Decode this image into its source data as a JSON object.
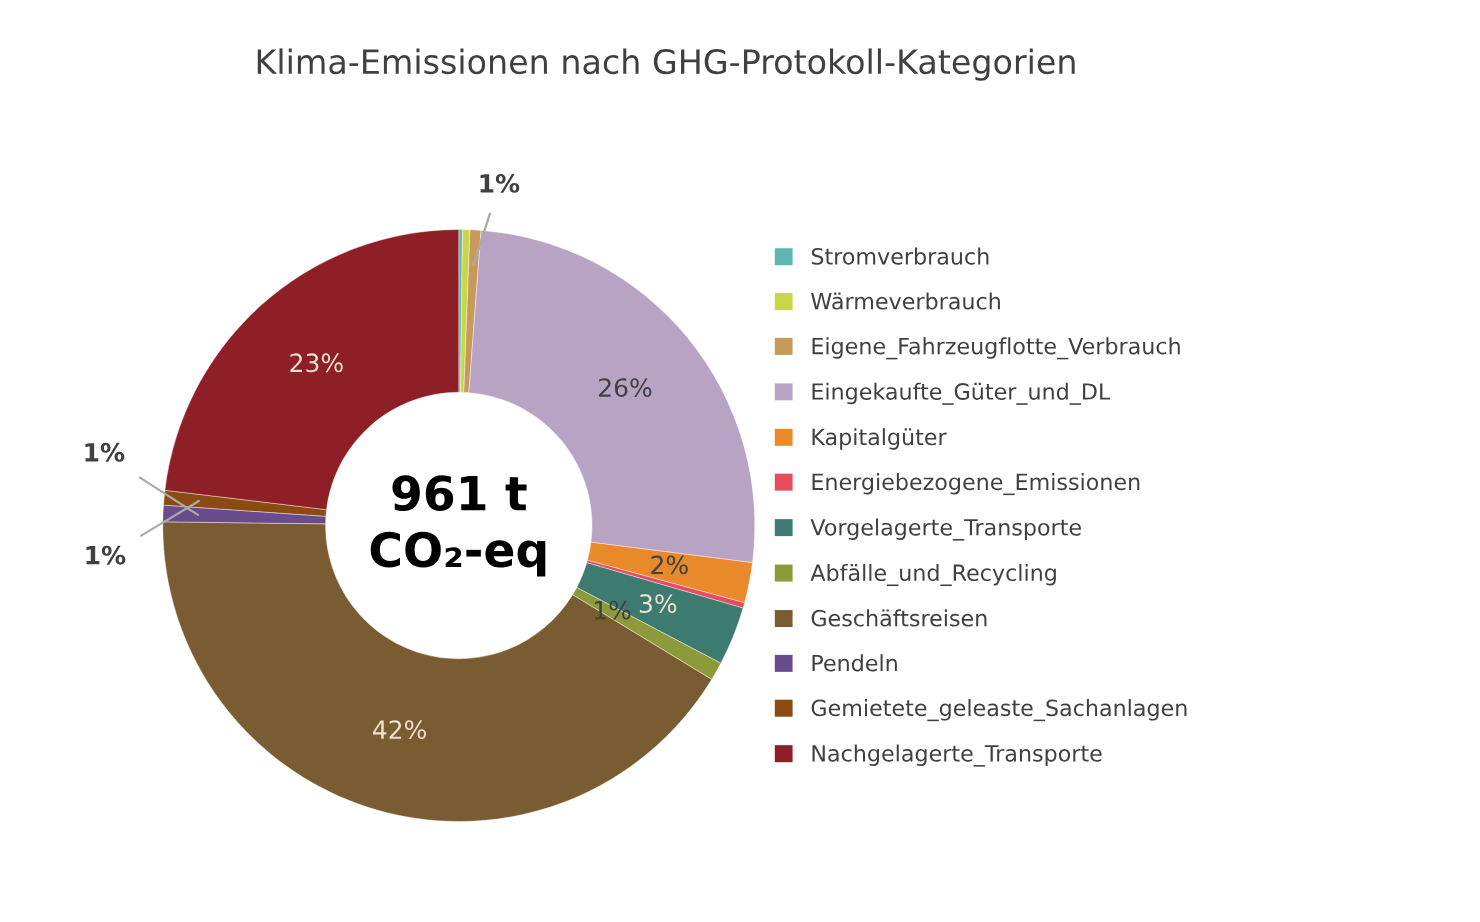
{
  "chart_data": {
    "type": "donut",
    "title": "Klima-Emissionen nach GHG-Protokoll-Kategorien",
    "categories": [
      "Stromverbrauch",
      "Wärmeverbrauch",
      "Eigene_Fahrzeugflotte_Verbrauch",
      "Eingekaufte_Güter_und_DL",
      "Kapitalgüter",
      "Energiebezogene_Emissionen",
      "Vorgelagerte_Transporte",
      "Abfälle_und_Recycling",
      "Geschäftsreisen",
      "Pendeln",
      "Gemietete_geleaste_Sachanlagen",
      "Nachgelagerte_Transporte"
    ],
    "values": [
      0.2,
      0.4,
      0.6,
      25.8,
      2.2,
      0.3,
      3.2,
      1.0,
      41.5,
      0.9,
      0.8,
      23.1
    ],
    "value_labels": [
      null,
      null,
      "1%",
      "26%",
      "2%",
      null,
      "3%",
      "1%",
      "42%",
      "1%",
      "1%",
      "23%"
    ],
    "colors": [
      "#5fb8b0",
      "#c8d64a",
      "#c89a5a",
      "#b9a3c4",
      "#e8892a",
      "#e84a5f",
      "#3d7a70",
      "#8c9a3a",
      "#7a5c32",
      "#6a4c8c",
      "#8a4a12",
      "#8e1f27"
    ],
    "annotations": [
      "961 t\nCO₂-eq"
    ],
    "legend": "right"
  }
}
